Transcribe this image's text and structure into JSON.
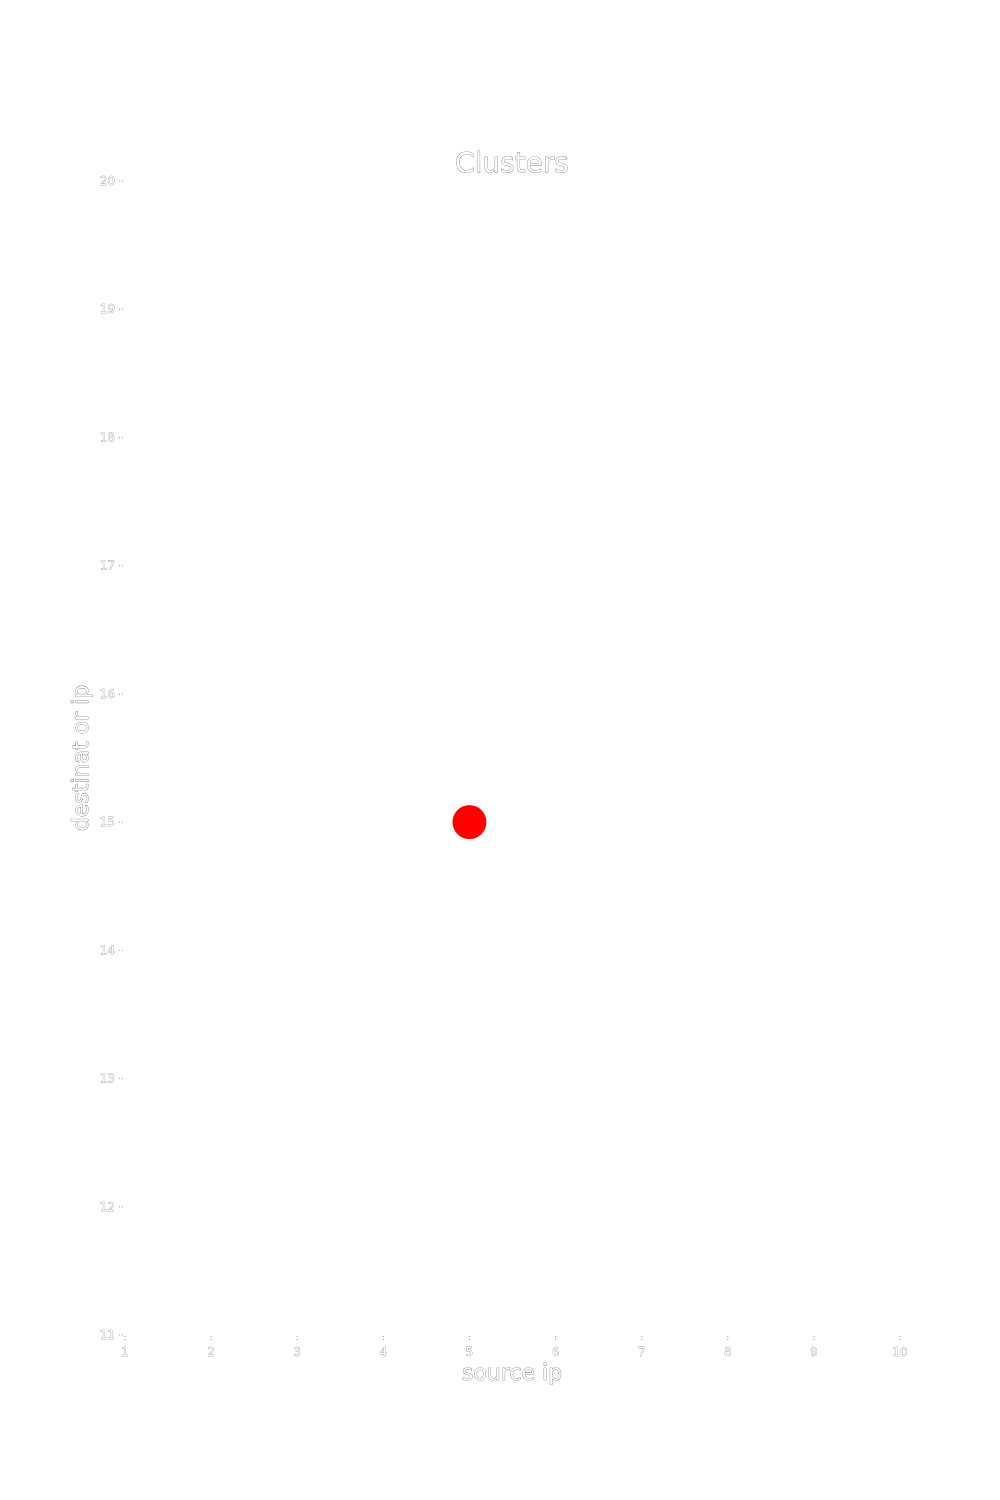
{
  "chart_data": {
    "type": "scatter",
    "title": "Clusters",
    "xlabel": "source ip",
    "ylabel": "destinat or ip",
    "xlim": [
      1,
      10
    ],
    "ylim": [
      11,
      20
    ],
    "x_ticks": [
      "1",
      "2",
      "3",
      "4",
      "5",
      "6",
      "7",
      "8",
      "9",
      "10"
    ],
    "y_ticks": [
      "11",
      "12",
      "13",
      "14",
      "15",
      "16",
      "17",
      "18",
      "19",
      "20"
    ],
    "grid": false,
    "legend": "none",
    "series": [
      {
        "color": "#ff0000",
        "points": [
          {
            "x": 5,
            "y": 15
          }
        ]
      }
    ]
  }
}
